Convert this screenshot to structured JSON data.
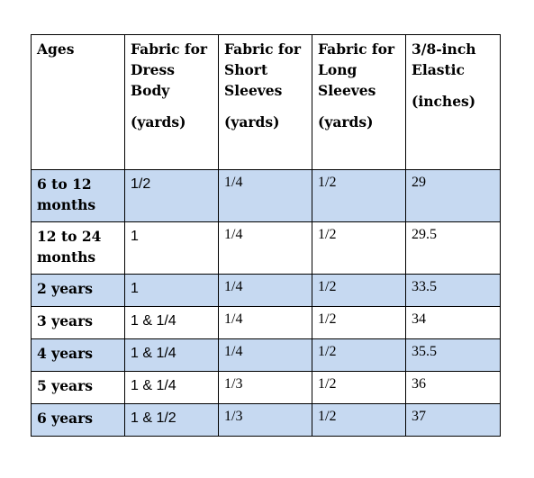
{
  "colors": {
    "shade": "#c6d9f1",
    "border": "#000000"
  },
  "header": {
    "ages": "Ages",
    "dress": {
      "l1": "Fabric for",
      "l2": "Dress",
      "l3": "Body",
      "unit": "(yards)"
    },
    "short": {
      "l1": "Fabric for",
      "l2": "Short",
      "l3": "Sleeves",
      "unit": "(yards)"
    },
    "long": {
      "l1": "Fabric for",
      "l2": "Long",
      "l3": "Sleeves",
      "unit": "(yards)"
    },
    "elastic": {
      "l1": "3/8-inch",
      "l2": "Elastic",
      "unit": "(inches)"
    }
  },
  "rows": [
    {
      "age": "6 to 12 months",
      "dress": "1/2",
      "short": "1/4",
      "long": "1/2",
      "elastic": "29"
    },
    {
      "age": "12 to 24 months",
      "dress": "1",
      "short": "1/4",
      "long": "1/2",
      "elastic": "29.5"
    },
    {
      "age": "2 years",
      "dress": "1",
      "short": "1/4",
      "long": "1/2",
      "elastic": "33.5"
    },
    {
      "age": "3 years",
      "dress": "1 & 1/4",
      "short": "1/4",
      "long": "1/2",
      "elastic": "34"
    },
    {
      "age": "4 years",
      "dress": "1 & 1/4",
      "short": "1/4",
      "long": "1/2",
      "elastic": "35.5"
    },
    {
      "age": "5 years",
      "dress": "1 & 1/4",
      "short": "1/3",
      "long": "1/2",
      "elastic": "36"
    },
    {
      "age": "6 years",
      "dress": "1 & 1/2",
      "short": "1/3",
      "long": "1/2",
      "elastic": "37"
    }
  ]
}
